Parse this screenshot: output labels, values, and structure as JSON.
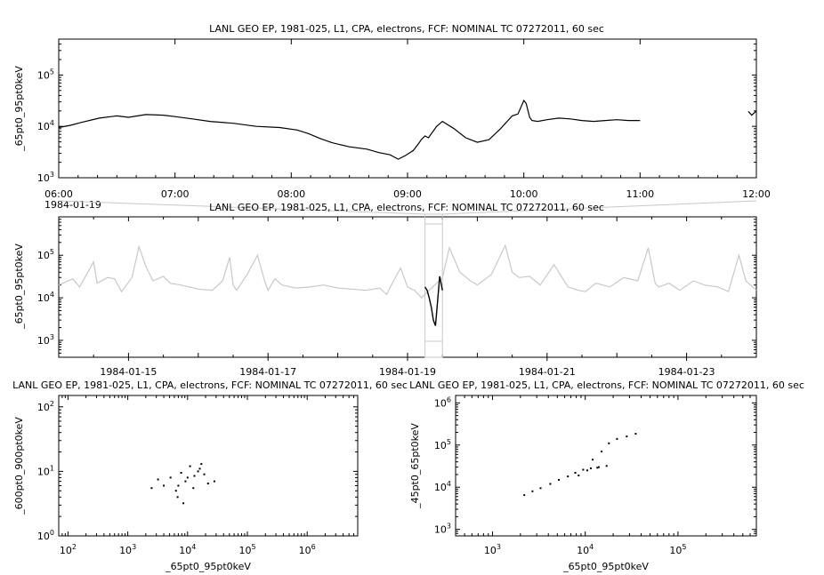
{
  "chart_data": [
    {
      "type": "line",
      "title": "LANL GEO EP, 1981-025, L1, CPA, electrons, FCF: NOMINAL TC 07272011, 60 sec",
      "ylabel": "_65pt0_95pt0keV",
      "y_scale": "log",
      "ylim": [
        1000,
        500000
      ],
      "y_ticks": [
        "10^3",
        "10^4",
        "10^5"
      ],
      "x_ticks": [
        "06:00",
        "07:00",
        "08:00",
        "09:00",
        "10:00",
        "11:00",
        "12:00"
      ],
      "x_date_label": "1984-01-19",
      "xlim_hours": [
        6,
        12
      ],
      "series": [
        {
          "x": [
            6.0,
            6.1,
            6.2,
            6.35,
            6.5,
            6.6,
            6.75,
            6.9,
            7.0,
            7.15,
            7.3,
            7.5,
            7.7,
            7.9,
            8.05,
            8.15,
            8.25,
            8.35,
            8.5,
            8.65,
            8.75,
            8.85,
            8.92,
            8.98,
            9.05,
            9.1,
            9.12,
            9.15,
            9.18,
            9.25,
            9.3,
            9.4,
            9.5,
            9.6,
            9.7,
            9.8,
            9.9,
            9.95,
            10.0,
            10.02,
            10.05,
            10.07,
            10.12,
            10.2,
            10.3,
            10.4,
            10.5,
            10.6,
            10.7,
            10.8,
            10.9,
            11.0
          ],
          "y": [
            9500,
            10500,
            12000,
            14500,
            16000,
            15000,
            17000,
            16500,
            15500,
            14000,
            12500,
            11500,
            10000,
            9500,
            8500,
            7200,
            5800,
            4800,
            4000,
            3600,
            3100,
            2800,
            2300,
            2700,
            3400,
            4800,
            5600,
            6500,
            6000,
            10000,
            12500,
            9000,
            6000,
            4900,
            5500,
            9000,
            16000,
            17500,
            32000,
            28000,
            15000,
            13000,
            12500,
            13500,
            14500,
            14000,
            13000,
            12500,
            13000,
            13500,
            13000,
            13000
          ]
        },
        {
          "x": [
            11.93,
            11.96,
            12.0
          ],
          "y": [
            19500,
            16500,
            20000
          ]
        }
      ]
    },
    {
      "type": "line",
      "title": "LANL GEO EP, 1981-025, L1, CPA, electrons, FCF: NOMINAL TC 07272011, 60 sec",
      "ylabel": "_65pt0_95pt0keV",
      "y_scale": "log",
      "ylim": [
        400,
        800000
      ],
      "y_ticks": [
        "10^3",
        "10^4",
        "10^5"
      ],
      "x_ticks": [
        "1984-01-15",
        "1984-01-17",
        "1984-01-19",
        "1984-01-21",
        "1984-01-23"
      ],
      "xlim_days": [
        14.0,
        24.0
      ],
      "highlight_days": [
        19.25,
        19.5
      ],
      "series": [
        {
          "name": "context",
          "color": "#c8c8c8",
          "x": [
            14.0,
            14.2,
            14.3,
            14.5,
            14.55,
            14.7,
            14.8,
            14.9,
            15.05,
            15.15,
            15.25,
            15.35,
            15.5,
            15.6,
            15.75,
            16.0,
            16.2,
            16.35,
            16.45,
            16.5,
            16.55,
            16.7,
            16.85,
            16.95,
            17.0,
            17.1,
            17.2,
            17.4,
            17.6,
            17.8,
            18.0,
            18.2,
            18.4,
            18.6,
            18.7,
            18.8,
            18.9,
            19.0,
            19.1,
            19.2,
            19.5,
            19.6,
            19.75,
            19.9,
            20.0,
            20.2,
            20.4,
            20.5,
            20.6,
            20.75,
            20.9,
            21.1,
            21.3,
            21.45,
            21.55,
            21.7,
            21.9,
            22.1,
            22.3,
            22.45,
            22.55,
            22.6,
            22.75,
            22.9,
            23.1,
            23.25,
            23.45,
            23.6,
            23.75,
            23.85,
            24.0
          ],
          "y": [
            20000,
            28000,
            18000,
            70000,
            22000,
            30000,
            28000,
            14000,
            30000,
            160000,
            55000,
            25000,
            32000,
            22000,
            20000,
            16000,
            15000,
            25000,
            90000,
            20000,
            15000,
            35000,
            100000,
            25000,
            15000,
            28000,
            20000,
            17000,
            18000,
            20000,
            17000,
            16000,
            15000,
            17000,
            12000,
            25000,
            50000,
            18000,
            15000,
            10000,
            30000,
            150000,
            40000,
            25000,
            20000,
            35000,
            170000,
            40000,
            30000,
            32000,
            20000,
            60000,
            18000,
            15000,
            14000,
            22000,
            18000,
            30000,
            25000,
            150000,
            22000,
            18000,
            22000,
            15000,
            25000,
            20000,
            18000,
            14000,
            100000,
            25000,
            15000
          ]
        },
        {
          "name": "selection",
          "color": "#000000",
          "x": [
            19.25,
            19.28,
            19.31,
            19.34,
            19.37,
            19.4,
            19.43,
            19.46,
            19.5
          ],
          "y": [
            18000,
            15000,
            10000,
            6000,
            3000,
            2200,
            8000,
            32000,
            15000
          ]
        }
      ]
    },
    {
      "type": "scatter",
      "title": "LANL GEO EP, 1981-025, L1, CPA, electrons, FCF: NOMINAL TC 07272011, 60 sec",
      "xlabel": "_65pt0_95pt0keV",
      "ylabel": "_600pt0_900pt0keV",
      "x_scale": "log",
      "y_scale": "log",
      "xlim": [
        70,
        7000000
      ],
      "ylim": [
        1,
        150
      ],
      "x_ticks": [
        "10^2",
        "10^3",
        "10^4",
        "10^5",
        "10^6"
      ],
      "y_ticks": [
        "10^0",
        "10^1",
        "10^2"
      ],
      "points": [
        [
          2500,
          5.5
        ],
        [
          3200,
          7.5
        ],
        [
          4000,
          6
        ],
        [
          5200,
          8
        ],
        [
          6400,
          5
        ],
        [
          7800,
          9.5
        ],
        [
          9200,
          7
        ],
        [
          11000,
          12
        ],
        [
          13000,
          8.5
        ],
        [
          15000,
          10
        ],
        [
          17000,
          13
        ],
        [
          19000,
          9
        ],
        [
          22000,
          6.5
        ],
        [
          28000,
          7
        ],
        [
          6800,
          4
        ],
        [
          8500,
          3.2
        ],
        [
          12500,
          5.5
        ],
        [
          16000,
          11
        ],
        [
          10000,
          8
        ],
        [
          7000,
          6
        ]
      ]
    },
    {
      "type": "scatter",
      "title": "LANL GEO EP, 1981-025, L1, CPA, electrons, FCF: NOMINAL TC 07272011, 60 sec",
      "xlabel": "_65pt0_95pt0keV",
      "ylabel": "_45pt0_65pt0keV",
      "x_scale": "log",
      "y_scale": "log",
      "xlim": [
        400,
        700000
      ],
      "ylim": [
        700,
        1500000
      ],
      "x_ticks": [
        "10^3",
        "10^4",
        "10^5"
      ],
      "y_ticks": [
        "10^3",
        "10^4",
        "10^5",
        "10^6"
      ],
      "points": [
        [
          2200,
          6500
        ],
        [
          2700,
          8000
        ],
        [
          3300,
          9500
        ],
        [
          4200,
          12000
        ],
        [
          5200,
          15000
        ],
        [
          6500,
          18000
        ],
        [
          7800,
          22000
        ],
        [
          9500,
          26000
        ],
        [
          11500,
          28000
        ],
        [
          14000,
          30000
        ],
        [
          17000,
          32000
        ],
        [
          12000,
          45000
        ],
        [
          15000,
          70000
        ],
        [
          18000,
          110000
        ],
        [
          22000,
          140000
        ],
        [
          28000,
          160000
        ],
        [
          35000,
          185000
        ],
        [
          8500,
          19000
        ],
        [
          10500,
          25000
        ],
        [
          13500,
          29000
        ]
      ]
    }
  ]
}
